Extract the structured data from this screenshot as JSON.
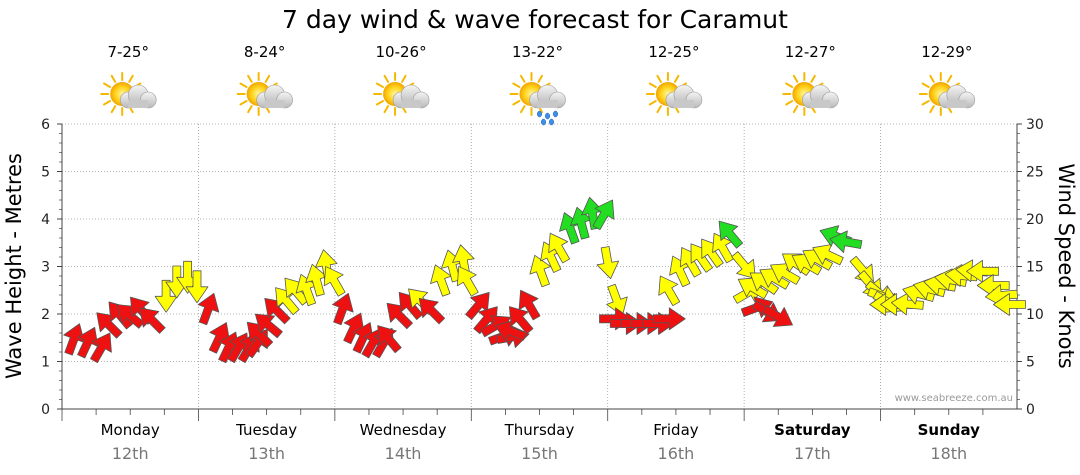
{
  "chart_data": {
    "type": "line",
    "title": "7 day wind & wave forecast for Caramut",
    "ylabel_left": "Wave Height - Metres",
    "ylabel_right": "Wind Speed - Knots",
    "ylim_left": [
      0,
      6
    ],
    "ylim_right": [
      0,
      30
    ],
    "yticks_left": [
      0,
      1,
      2,
      3,
      4,
      5,
      6
    ],
    "yticks_right": [
      0,
      5,
      10,
      15,
      20,
      25,
      30
    ],
    "watermark": "www.seabreeze.com.au",
    "colors": {
      "low": "#ee1111",
      "mid": "#ffff00",
      "high": "#22dd22"
    },
    "days": [
      {
        "name": "Monday",
        "date": "12th",
        "temp": "7-25°",
        "weather": "partly-cloudy",
        "bold": false
      },
      {
        "name": "Tuesday",
        "date": "13th",
        "temp": "8-24°",
        "weather": "partly-cloudy",
        "bold": false
      },
      {
        "name": "Wednesday",
        "date": "14th",
        "temp": "10-26°",
        "weather": "partly-cloudy",
        "bold": false
      },
      {
        "name": "Thursday",
        "date": "15th",
        "temp": "13-22°",
        "weather": "showers",
        "bold": false
      },
      {
        "name": "Friday",
        "date": "16th",
        "temp": "12-25°",
        "weather": "partly-cloudy",
        "bold": false
      },
      {
        "name": "Saturday",
        "date": "17th",
        "temp": "12-27°",
        "weather": "partly-cloudy",
        "bold": true
      },
      {
        "name": "Sunday",
        "date": "18th",
        "temp": "12-29°",
        "weather": "partly-cloudy",
        "bold": true
      }
    ],
    "series": [
      {
        "name": "Wind Speed - Knots",
        "unit": "knots",
        "points": [
          {
            "day": 0.0,
            "v": 6.8,
            "dir": 20
          },
          {
            "day": 0.1,
            "v": 6.5,
            "dir": 25
          },
          {
            "day": 0.2,
            "v": 6.0,
            "dir": 30
          },
          {
            "day": 0.3,
            "v": 8.5,
            "dir": -45
          },
          {
            "day": 0.38,
            "v": 9.5,
            "dir": -40
          },
          {
            "day": 0.46,
            "v": 9.5,
            "dir": -50
          },
          {
            "day": 0.54,
            "v": 10.0,
            "dir": -40
          },
          {
            "day": 0.62,
            "v": 9.0,
            "dir": -45
          },
          {
            "day": 0.7,
            "v": 12.5,
            "dir": 180
          },
          {
            "day": 0.78,
            "v": 14.0,
            "dir": 180
          },
          {
            "day": 0.86,
            "v": 14.5,
            "dir": 180
          },
          {
            "day": 0.93,
            "v": 13.5,
            "dir": 180
          },
          {
            "day": 1.0,
            "v": 10.0,
            "dir": 20
          },
          {
            "day": 1.08,
            "v": 7.0,
            "dir": 25
          },
          {
            "day": 1.15,
            "v": 6.0,
            "dir": 25
          },
          {
            "day": 1.22,
            "v": 6.0,
            "dir": 30
          },
          {
            "day": 1.3,
            "v": 6.0,
            "dir": 30
          },
          {
            "day": 1.36,
            "v": 6.5,
            "dir": 35
          },
          {
            "day": 1.42,
            "v": 7.5,
            "dir": -45
          },
          {
            "day": 1.49,
            "v": 8.5,
            "dir": -50
          },
          {
            "day": 1.55,
            "v": 10.0,
            "dir": -45
          },
          {
            "day": 1.62,
            "v": 11.0,
            "dir": -40
          },
          {
            "day": 1.69,
            "v": 12.0,
            "dir": -40
          },
          {
            "day": 1.76,
            "v": 12.0,
            "dir": -20
          },
          {
            "day": 1.83,
            "v": 13.0,
            "dir": -15
          },
          {
            "day": 1.9,
            "v": 14.5,
            "dir": -10
          },
          {
            "day": 1.97,
            "v": 13.0,
            "dir": -30
          },
          {
            "day": 2.0,
            "v": 10.0,
            "dir": 20
          },
          {
            "day": 2.08,
            "v": 8.0,
            "dir": 25
          },
          {
            "day": 2.15,
            "v": 7.0,
            "dir": 25
          },
          {
            "day": 2.22,
            "v": 6.5,
            "dir": 30
          },
          {
            "day": 2.3,
            "v": 6.5,
            "dir": 30
          },
          {
            "day": 2.38,
            "v": 7.0,
            "dir": -40
          },
          {
            "day": 2.46,
            "v": 9.5,
            "dir": -45
          },
          {
            "day": 2.54,
            "v": 10.5,
            "dir": -40
          },
          {
            "day": 2.62,
            "v": 11.0,
            "dir": -45
          },
          {
            "day": 2.7,
            "v": 10.0,
            "dir": -45
          },
          {
            "day": 2.76,
            "v": 13.0,
            "dir": -20
          },
          {
            "day": 2.84,
            "v": 14.5,
            "dir": -15
          },
          {
            "day": 2.92,
            "v": 15.0,
            "dir": -10
          },
          {
            "day": 2.96,
            "v": 13.0,
            "dir": -30
          },
          {
            "day": 3.0,
            "v": 10.5,
            "dir": 40
          },
          {
            "day": 3.06,
            "v": 9.0,
            "dir": 40
          },
          {
            "day": 3.12,
            "v": 8.5,
            "dir": 60
          },
          {
            "day": 3.18,
            "v": 7.5,
            "dir": 70
          },
          {
            "day": 3.24,
            "v": 7.5,
            "dir": 80
          },
          {
            "day": 3.3,
            "v": 8.0,
            "dir": -70
          },
          {
            "day": 3.36,
            "v": 9.0,
            "dir": -40
          },
          {
            "day": 3.42,
            "v": 10.5,
            "dir": -30
          },
          {
            "day": 3.5,
            "v": 14.0,
            "dir": -20
          },
          {
            "day": 3.58,
            "v": 15.5,
            "dir": -25
          },
          {
            "day": 3.64,
            "v": 16.5,
            "dir": -30
          },
          {
            "day": 3.72,
            "v": 18.5,
            "dir": -20
          },
          {
            "day": 3.8,
            "v": 19.0,
            "dir": -15
          },
          {
            "day": 3.88,
            "v": 20.0,
            "dir": -10
          },
          {
            "day": 3.94,
            "v": 20.0,
            "dir": 30
          },
          {
            "day": 3.98,
            "v": 16.0,
            "dir": 170
          },
          {
            "day": 4.04,
            "v": 12.0,
            "dir": 160
          },
          {
            "day": 4.0,
            "v": 9.5,
            "dir": 90
          },
          {
            "day": 4.08,
            "v": 9.0,
            "dir": 90
          },
          {
            "day": 4.16,
            "v": 9.0,
            "dir": 90
          },
          {
            "day": 4.24,
            "v": 9.0,
            "dir": 90
          },
          {
            "day": 4.32,
            "v": 9.0,
            "dir": 90
          },
          {
            "day": 4.4,
            "v": 9.5,
            "dir": 90
          },
          {
            "day": 4.46,
            "v": 12.0,
            "dir": -30
          },
          {
            "day": 4.54,
            "v": 14.0,
            "dir": -25
          },
          {
            "day": 4.62,
            "v": 15.0,
            "dir": -30
          },
          {
            "day": 4.7,
            "v": 15.5,
            "dir": -35
          },
          {
            "day": 4.78,
            "v": 16.0,
            "dir": -35
          },
          {
            "day": 4.86,
            "v": 16.5,
            "dir": -30
          },
          {
            "day": 4.92,
            "v": 18.0,
            "dir": -40
          },
          {
            "day": 4.98,
            "v": 15.5,
            "dir": 140
          },
          {
            "day": 5.0,
            "v": 12.0,
            "dir": 60
          },
          {
            "day": 5.06,
            "v": 10.5,
            "dir": 70
          },
          {
            "day": 5.14,
            "v": 10.5,
            "dir": 120
          },
          {
            "day": 5.22,
            "v": 10.0,
            "dir": 120
          },
          {
            "day": 5.1,
            "v": 12.5,
            "dir": -60
          },
          {
            "day": 5.18,
            "v": 13.0,
            "dir": -55
          },
          {
            "day": 5.26,
            "v": 13.5,
            "dir": -60
          },
          {
            "day": 5.34,
            "v": 14.0,
            "dir": -60
          },
          {
            "day": 5.42,
            "v": 15.0,
            "dir": -55
          },
          {
            "day": 5.5,
            "v": 15.0,
            "dir": -60
          },
          {
            "day": 5.58,
            "v": 15.5,
            "dir": -60
          },
          {
            "day": 5.66,
            "v": 16.0,
            "dir": -65
          },
          {
            "day": 5.72,
            "v": 18.0,
            "dir": -70
          },
          {
            "day": 5.8,
            "v": 17.5,
            "dir": -80
          },
          {
            "day": 5.86,
            "v": 15.0,
            "dir": 140
          },
          {
            "day": 5.92,
            "v": 13.5,
            "dir": 140
          },
          {
            "day": 5.98,
            "v": 12.5,
            "dir": 130
          },
          {
            "day": 6.0,
            "v": 12.0,
            "dir": 110
          },
          {
            "day": 6.04,
            "v": 11.5,
            "dir": 120
          },
          {
            "day": 6.1,
            "v": 11.0,
            "dir": -90
          },
          {
            "day": 6.18,
            "v": 11.0,
            "dir": -90
          },
          {
            "day": 6.26,
            "v": 11.0,
            "dir": -85
          },
          {
            "day": 6.34,
            "v": 12.0,
            "dir": -75
          },
          {
            "day": 6.42,
            "v": 12.5,
            "dir": -75
          },
          {
            "day": 6.5,
            "v": 13.0,
            "dir": -80
          },
          {
            "day": 6.58,
            "v": 13.5,
            "dir": -80
          },
          {
            "day": 6.66,
            "v": 14.0,
            "dir": -85
          },
          {
            "day": 6.74,
            "v": 14.5,
            "dir": -85
          },
          {
            "day": 6.82,
            "v": 14.5,
            "dir": -90
          },
          {
            "day": 6.9,
            "v": 13.0,
            "dir": -90
          },
          {
            "day": 6.96,
            "v": 12.0,
            "dir": -95
          },
          {
            "day": 7.02,
            "v": 11.0,
            "dir": -90
          }
        ]
      }
    ]
  }
}
